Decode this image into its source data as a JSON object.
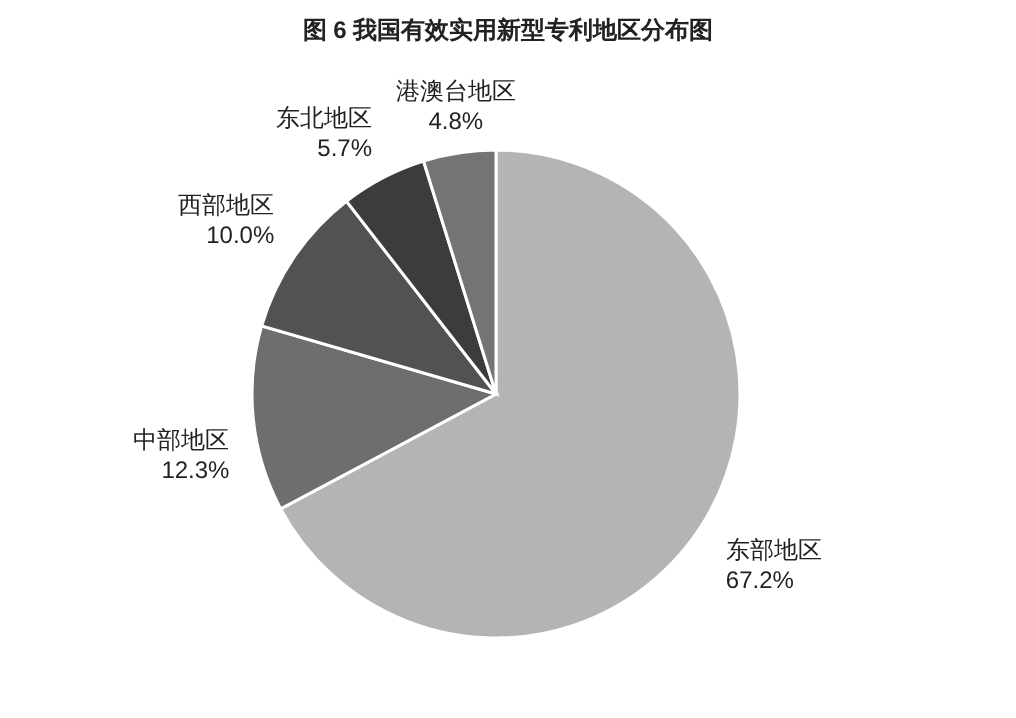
{
  "chart_data": {
    "type": "pie",
    "title": "图 6 我国有效实用新型专利地区分布图",
    "categories": [
      "东部地区",
      "中部地区",
      "西部地区",
      "东北地区",
      "港澳台地区"
    ],
    "values": [
      67.2,
      12.3,
      10.0,
      5.7,
      4.8
    ],
    "value_labels": [
      "67.2%",
      "12.3%",
      "10.0%",
      "5.7%",
      "4.8%"
    ],
    "colors": [
      "#b4b4b4",
      "#6e6e6e",
      "#525252",
      "#3c3c3c",
      "#747474"
    ]
  }
}
